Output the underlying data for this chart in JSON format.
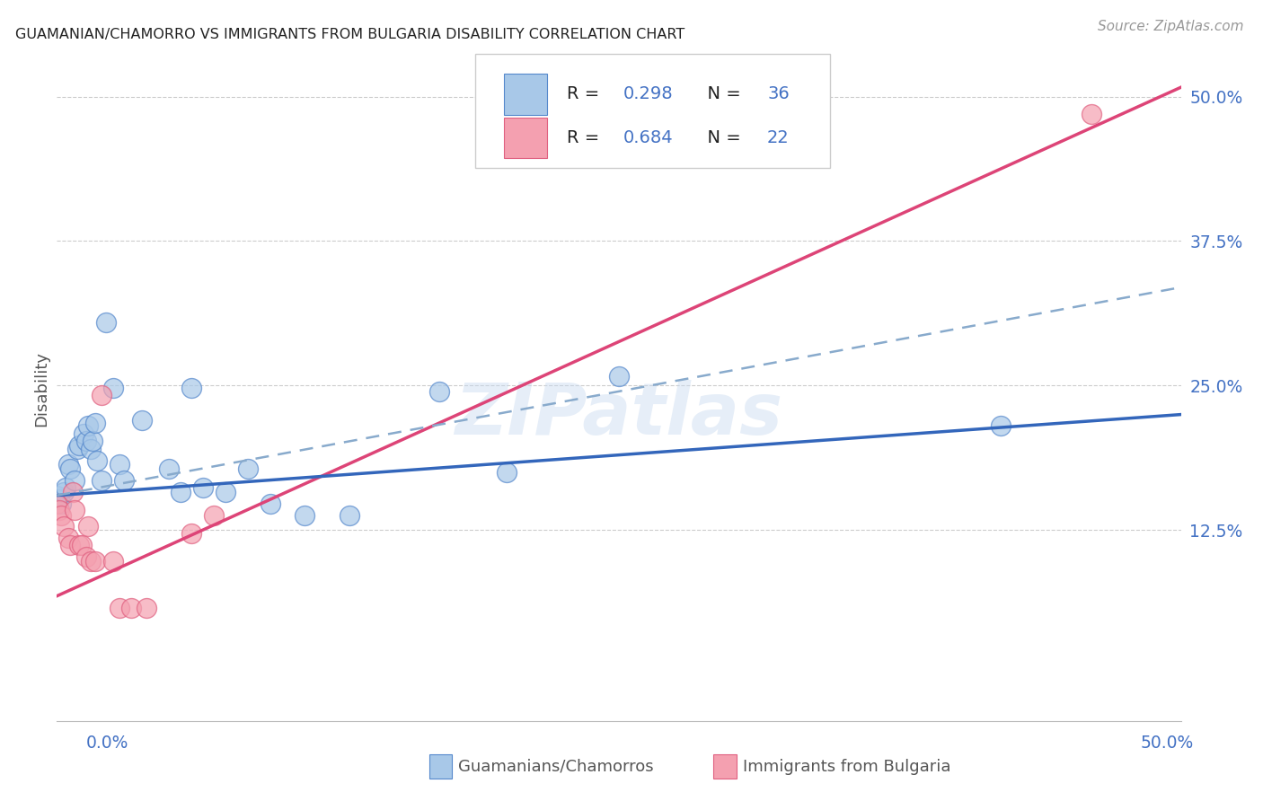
{
  "title": "GUAMANIAN/CHAMORRO VS IMMIGRANTS FROM BULGARIA DISABILITY CORRELATION CHART",
  "source": "Source: ZipAtlas.com",
  "ylabel": "Disability",
  "xlim": [
    0.0,
    0.5
  ],
  "ylim": [
    -0.04,
    0.535
  ],
  "watermark": "ZIPatlas",
  "blue_scatter": [
    [
      0.0,
      0.155
    ],
    [
      0.001,
      0.152
    ],
    [
      0.002,
      0.148
    ],
    [
      0.003,
      0.158
    ],
    [
      0.004,
      0.162
    ],
    [
      0.005,
      0.182
    ],
    [
      0.006,
      0.178
    ],
    [
      0.008,
      0.168
    ],
    [
      0.009,
      0.195
    ],
    [
      0.01,
      0.198
    ],
    [
      0.012,
      0.208
    ],
    [
      0.013,
      0.202
    ],
    [
      0.014,
      0.215
    ],
    [
      0.015,
      0.195
    ],
    [
      0.016,
      0.202
    ],
    [
      0.017,
      0.218
    ],
    [
      0.018,
      0.185
    ],
    [
      0.02,
      0.168
    ],
    [
      0.022,
      0.305
    ],
    [
      0.025,
      0.248
    ],
    [
      0.028,
      0.182
    ],
    [
      0.03,
      0.168
    ],
    [
      0.038,
      0.22
    ],
    [
      0.05,
      0.178
    ],
    [
      0.055,
      0.158
    ],
    [
      0.06,
      0.248
    ],
    [
      0.065,
      0.162
    ],
    [
      0.075,
      0.158
    ],
    [
      0.085,
      0.178
    ],
    [
      0.095,
      0.148
    ],
    [
      0.11,
      0.138
    ],
    [
      0.13,
      0.138
    ],
    [
      0.17,
      0.245
    ],
    [
      0.2,
      0.175
    ],
    [
      0.25,
      0.258
    ],
    [
      0.42,
      0.215
    ]
  ],
  "pink_scatter": [
    [
      0.0,
      0.148
    ],
    [
      0.001,
      0.142
    ],
    [
      0.002,
      0.138
    ],
    [
      0.003,
      0.128
    ],
    [
      0.005,
      0.118
    ],
    [
      0.006,
      0.112
    ],
    [
      0.007,
      0.158
    ],
    [
      0.008,
      0.142
    ],
    [
      0.01,
      0.112
    ],
    [
      0.011,
      0.112
    ],
    [
      0.013,
      0.102
    ],
    [
      0.014,
      0.128
    ],
    [
      0.015,
      0.098
    ],
    [
      0.017,
      0.098
    ],
    [
      0.02,
      0.242
    ],
    [
      0.025,
      0.098
    ],
    [
      0.028,
      0.058
    ],
    [
      0.033,
      0.058
    ],
    [
      0.04,
      0.058
    ],
    [
      0.06,
      0.122
    ],
    [
      0.07,
      0.138
    ],
    [
      0.46,
      0.485
    ]
  ],
  "blue_line_solid": [
    [
      0.0,
      0.155
    ],
    [
      0.5,
      0.225
    ]
  ],
  "pink_line_solid": [
    [
      0.0,
      0.068
    ],
    [
      0.5,
      0.508
    ]
  ],
  "blue_line_dash": [
    [
      0.0,
      0.155
    ],
    [
      0.5,
      0.335
    ]
  ],
  "blue_R": "0.298",
  "blue_N": "36",
  "pink_R": "0.684",
  "pink_N": "22",
  "blue_fill": "#a8c8e8",
  "pink_fill": "#f4a0b0",
  "blue_edge": "#5588cc",
  "pink_edge": "#e06080",
  "blue_line_color": "#3366bb",
  "pink_line_color": "#dd4477",
  "dash_line_color": "#88aacc",
  "title_color": "#222222",
  "axis_label_color": "#4472c4",
  "background_color": "#ffffff",
  "grid_color": "#cccccc",
  "ytick_vals": [
    0.125,
    0.25,
    0.375,
    0.5
  ],
  "ytick_labels": [
    "12.5%",
    "25.0%",
    "37.5%",
    "50.0%"
  ]
}
